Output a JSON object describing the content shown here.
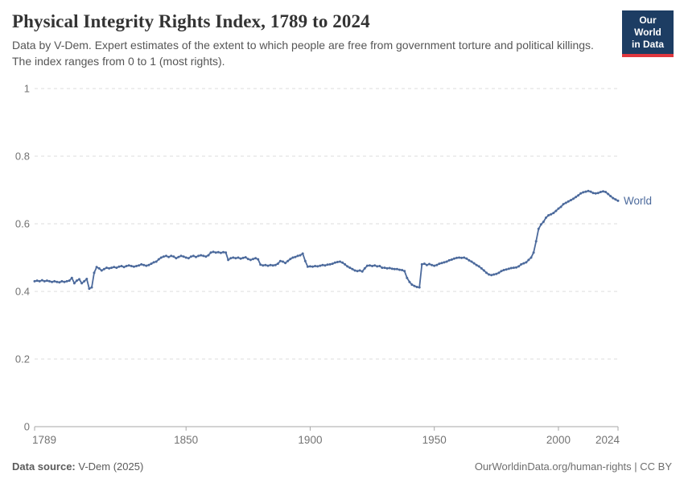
{
  "header": {
    "title": "Physical Integrity Rights Index, 1789 to 2024",
    "subtitle": "Data by V-Dem. Expert estimates of the extent to which people are free from government torture and political killings. The index ranges from 0 to 1 (most rights)."
  },
  "logo": {
    "line1": "Our World",
    "line2": "in Data",
    "bg_color": "#1d3d63",
    "accent_color": "#e0373e"
  },
  "footer": {
    "source_label": "Data source:",
    "source_value": " V-Dem (2025)",
    "right_text": "OurWorldinData.org/human-rights | CC BY"
  },
  "chart_colors": {
    "line": "#4c6a9c",
    "grid": "#dcdcdc",
    "axis": "#a7a7a7",
    "tick_text": "#737373"
  },
  "chart_data": {
    "type": "line",
    "title": "Physical Integrity Rights Index, 1789 to 2024",
    "xlabel": "",
    "ylabel": "",
    "xlim": [
      1789,
      2024
    ],
    "ylim": [
      0,
      1
    ],
    "x_ticks": [
      1789,
      1850,
      1900,
      1950,
      2000,
      2024
    ],
    "y_ticks": [
      0,
      0.2,
      0.4,
      0.6,
      0.8,
      1
    ],
    "grid": "horizontal-dashed",
    "legend": "end-of-line-label",
    "series": [
      {
        "name": "World",
        "color": "#4c6a9c",
        "points": [
          [
            1789,
            0.43
          ],
          [
            1790,
            0.432
          ],
          [
            1791,
            0.43
          ],
          [
            1792,
            0.433
          ],
          [
            1793,
            0.43
          ],
          [
            1794,
            0.432
          ],
          [
            1795,
            0.43
          ],
          [
            1796,
            0.428
          ],
          [
            1797,
            0.43
          ],
          [
            1798,
            0.428
          ],
          [
            1799,
            0.427
          ],
          [
            1800,
            0.43
          ],
          [
            1801,
            0.428
          ],
          [
            1802,
            0.43
          ],
          [
            1803,
            0.432
          ],
          [
            1804,
            0.44
          ],
          [
            1805,
            0.424
          ],
          [
            1806,
            0.432
          ],
          [
            1807,
            0.436
          ],
          [
            1808,
            0.424
          ],
          [
            1809,
            0.43
          ],
          [
            1810,
            0.437
          ],
          [
            1811,
            0.408
          ],
          [
            1812,
            0.412
          ],
          [
            1813,
            0.455
          ],
          [
            1814,
            0.472
          ],
          [
            1815,
            0.468
          ],
          [
            1816,
            0.462
          ],
          [
            1817,
            0.466
          ],
          [
            1818,
            0.47
          ],
          [
            1819,
            0.468
          ],
          [
            1820,
            0.47
          ],
          [
            1821,
            0.472
          ],
          [
            1822,
            0.47
          ],
          [
            1823,
            0.473
          ],
          [
            1824,
            0.475
          ],
          [
            1825,
            0.472
          ],
          [
            1826,
            0.475
          ],
          [
            1827,
            0.477
          ],
          [
            1828,
            0.475
          ],
          [
            1829,
            0.473
          ],
          [
            1830,
            0.475
          ],
          [
            1831,
            0.477
          ],
          [
            1832,
            0.48
          ],
          [
            1833,
            0.478
          ],
          [
            1834,
            0.476
          ],
          [
            1835,
            0.478
          ],
          [
            1836,
            0.482
          ],
          [
            1837,
            0.486
          ],
          [
            1838,
            0.488
          ],
          [
            1839,
            0.495
          ],
          [
            1840,
            0.5
          ],
          [
            1841,
            0.503
          ],
          [
            1842,
            0.505
          ],
          [
            1843,
            0.502
          ],
          [
            1844,
            0.505
          ],
          [
            1845,
            0.503
          ],
          [
            1846,
            0.498
          ],
          [
            1847,
            0.502
          ],
          [
            1848,
            0.505
          ],
          [
            1849,
            0.503
          ],
          [
            1850,
            0.5
          ],
          [
            1851,
            0.498
          ],
          [
            1852,
            0.503
          ],
          [
            1853,
            0.505
          ],
          [
            1854,
            0.502
          ],
          [
            1855,
            0.505
          ],
          [
            1856,
            0.507
          ],
          [
            1857,
            0.505
          ],
          [
            1858,
            0.503
          ],
          [
            1859,
            0.507
          ],
          [
            1860,
            0.515
          ],
          [
            1861,
            0.517
          ],
          [
            1862,
            0.515
          ],
          [
            1863,
            0.516
          ],
          [
            1864,
            0.514
          ],
          [
            1865,
            0.516
          ],
          [
            1866,
            0.515
          ],
          [
            1867,
            0.493
          ],
          [
            1868,
            0.498
          ],
          [
            1869,
            0.5
          ],
          [
            1870,
            0.498
          ],
          [
            1871,
            0.5
          ],
          [
            1872,
            0.497
          ],
          [
            1873,
            0.499
          ],
          [
            1874,
            0.501
          ],
          [
            1875,
            0.496
          ],
          [
            1876,
            0.493
          ],
          [
            1877,
            0.496
          ],
          [
            1878,
            0.498
          ],
          [
            1879,
            0.495
          ],
          [
            1880,
            0.479
          ],
          [
            1881,
            0.477
          ],
          [
            1882,
            0.478
          ],
          [
            1883,
            0.476
          ],
          [
            1884,
            0.478
          ],
          [
            1885,
            0.477
          ],
          [
            1886,
            0.478
          ],
          [
            1887,
            0.482
          ],
          [
            1888,
            0.49
          ],
          [
            1889,
            0.488
          ],
          [
            1890,
            0.484
          ],
          [
            1891,
            0.49
          ],
          [
            1892,
            0.496
          ],
          [
            1893,
            0.5
          ],
          [
            1894,
            0.502
          ],
          [
            1895,
            0.505
          ],
          [
            1896,
            0.507
          ],
          [
            1897,
            0.512
          ],
          [
            1898,
            0.49
          ],
          [
            1899,
            0.473
          ],
          [
            1900,
            0.474
          ],
          [
            1901,
            0.473
          ],
          [
            1902,
            0.475
          ],
          [
            1903,
            0.474
          ],
          [
            1904,
            0.476
          ],
          [
            1905,
            0.478
          ],
          [
            1906,
            0.477
          ],
          [
            1907,
            0.479
          ],
          [
            1908,
            0.48
          ],
          [
            1909,
            0.482
          ],
          [
            1910,
            0.485
          ],
          [
            1911,
            0.487
          ],
          [
            1912,
            0.488
          ],
          [
            1913,
            0.485
          ],
          [
            1914,
            0.48
          ],
          [
            1915,
            0.474
          ],
          [
            1916,
            0.47
          ],
          [
            1917,
            0.466
          ],
          [
            1918,
            0.462
          ],
          [
            1919,
            0.46
          ],
          [
            1920,
            0.462
          ],
          [
            1921,
            0.459
          ],
          [
            1922,
            0.468
          ],
          [
            1923,
            0.476
          ],
          [
            1924,
            0.477
          ],
          [
            1925,
            0.475
          ],
          [
            1926,
            0.477
          ],
          [
            1927,
            0.474
          ],
          [
            1928,
            0.475
          ],
          [
            1929,
            0.47
          ],
          [
            1930,
            0.47
          ],
          [
            1931,
            0.468
          ],
          [
            1932,
            0.469
          ],
          [
            1933,
            0.467
          ],
          [
            1934,
            0.466
          ],
          [
            1935,
            0.466
          ],
          [
            1936,
            0.464
          ],
          [
            1937,
            0.463
          ],
          [
            1938,
            0.46
          ],
          [
            1939,
            0.44
          ],
          [
            1940,
            0.428
          ],
          [
            1941,
            0.42
          ],
          [
            1942,
            0.416
          ],
          [
            1943,
            0.413
          ],
          [
            1944,
            0.412
          ],
          [
            1945,
            0.48
          ],
          [
            1946,
            0.482
          ],
          [
            1947,
            0.478
          ],
          [
            1948,
            0.481
          ],
          [
            1949,
            0.478
          ],
          [
            1950,
            0.476
          ],
          [
            1951,
            0.478
          ],
          [
            1952,
            0.482
          ],
          [
            1953,
            0.484
          ],
          [
            1954,
            0.486
          ],
          [
            1955,
            0.488
          ],
          [
            1956,
            0.492
          ],
          [
            1957,
            0.494
          ],
          [
            1958,
            0.497
          ],
          [
            1959,
            0.499
          ],
          [
            1960,
            0.5
          ],
          [
            1961,
            0.499
          ],
          [
            1962,
            0.5
          ],
          [
            1963,
            0.497
          ],
          [
            1964,
            0.492
          ],
          [
            1965,
            0.488
          ],
          [
            1966,
            0.483
          ],
          [
            1967,
            0.478
          ],
          [
            1968,
            0.474
          ],
          [
            1969,
            0.468
          ],
          [
            1970,
            0.462
          ],
          [
            1971,
            0.455
          ],
          [
            1972,
            0.45
          ],
          [
            1973,
            0.448
          ],
          [
            1974,
            0.45
          ],
          [
            1975,
            0.452
          ],
          [
            1976,
            0.455
          ],
          [
            1977,
            0.46
          ],
          [
            1978,
            0.463
          ],
          [
            1979,
            0.465
          ],
          [
            1980,
            0.467
          ],
          [
            1981,
            0.469
          ],
          [
            1982,
            0.47
          ],
          [
            1983,
            0.471
          ],
          [
            1984,
            0.474
          ],
          [
            1985,
            0.48
          ],
          [
            1986,
            0.483
          ],
          [
            1987,
            0.486
          ],
          [
            1988,
            0.493
          ],
          [
            1989,
            0.5
          ],
          [
            1990,
            0.515
          ],
          [
            1991,
            0.548
          ],
          [
            1992,
            0.585
          ],
          [
            1993,
            0.598
          ],
          [
            1994,
            0.606
          ],
          [
            1995,
            0.618
          ],
          [
            1996,
            0.625
          ],
          [
            1997,
            0.628
          ],
          [
            1998,
            0.632
          ],
          [
            1999,
            0.638
          ],
          [
            2000,
            0.645
          ],
          [
            2001,
            0.65
          ],
          [
            2002,
            0.658
          ],
          [
            2003,
            0.662
          ],
          [
            2004,
            0.666
          ],
          [
            2005,
            0.67
          ],
          [
            2006,
            0.674
          ],
          [
            2007,
            0.679
          ],
          [
            2008,
            0.684
          ],
          [
            2009,
            0.69
          ],
          [
            2010,
            0.693
          ],
          [
            2011,
            0.695
          ],
          [
            2012,
            0.697
          ],
          [
            2013,
            0.695
          ],
          [
            2014,
            0.691
          ],
          [
            2015,
            0.69
          ],
          [
            2016,
            0.691
          ],
          [
            2017,
            0.694
          ],
          [
            2018,
            0.696
          ],
          [
            2019,
            0.694
          ],
          [
            2020,
            0.688
          ],
          [
            2021,
            0.682
          ],
          [
            2022,
            0.676
          ],
          [
            2023,
            0.672
          ],
          [
            2024,
            0.668
          ]
        ]
      }
    ]
  }
}
